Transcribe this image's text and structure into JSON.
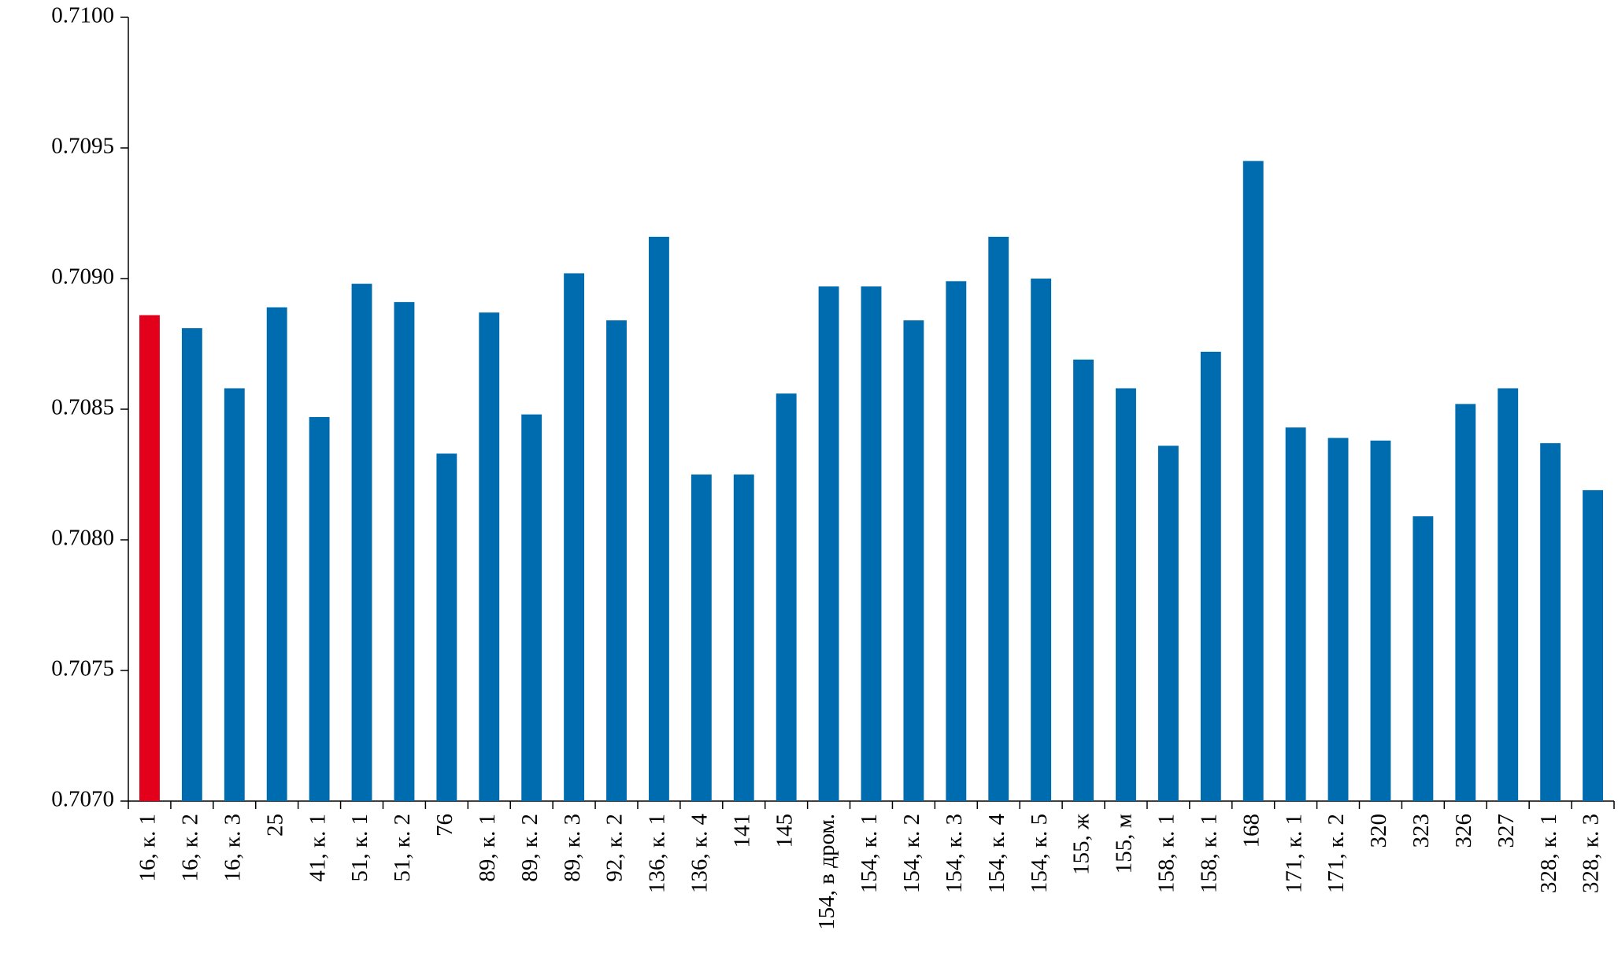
{
  "chart_data": {
    "type": "bar",
    "categories": [
      "16, к. 1",
      "16, к. 2",
      "16, к. 3",
      "25",
      "41, к. 1",
      "51, к. 1",
      "51, к. 2",
      "76",
      "89, к. 1",
      "89, к. 2",
      "89, к. 3",
      "92, к. 2",
      "136, к. 1",
      "136, к. 4",
      "141",
      "145",
      "154, в дром.",
      "154, к. 1",
      "154, к. 2",
      "154, к. 3",
      "154, к. 4",
      "154, к. 5",
      "155, ж",
      "155, м",
      "158, к. 1",
      "158, к. 1",
      "168",
      "171, к. 1",
      "171, к. 2",
      "320",
      "323",
      "326",
      "327",
      "328, к. 1",
      "328, к. 3"
    ],
    "values": [
      0.70886,
      0.70881,
      0.70858,
      0.70889,
      0.70847,
      0.70898,
      0.70891,
      0.70833,
      0.70887,
      0.70848,
      0.70902,
      0.70884,
      0.70916,
      0.70825,
      0.70825,
      0.70856,
      0.70897,
      0.70897,
      0.70884,
      0.70899,
      0.70916,
      0.709,
      0.70869,
      0.70858,
      0.70836,
      0.70872,
      0.70945,
      0.70843,
      0.70839,
      0.70838,
      0.70809,
      0.70852,
      0.70858,
      0.70837,
      0.70819
    ],
    "colors": [
      "#e2001a",
      "#006cb0",
      "#006cb0",
      "#006cb0",
      "#006cb0",
      "#006cb0",
      "#006cb0",
      "#006cb0",
      "#006cb0",
      "#006cb0",
      "#006cb0",
      "#006cb0",
      "#006cb0",
      "#006cb0",
      "#006cb0",
      "#006cb0",
      "#006cb0",
      "#006cb0",
      "#006cb0",
      "#006cb0",
      "#006cb0",
      "#006cb0",
      "#006cb0",
      "#006cb0",
      "#006cb0",
      "#006cb0",
      "#006cb0",
      "#006cb0",
      "#006cb0",
      "#006cb0",
      "#006cb0",
      "#006cb0",
      "#006cb0",
      "#006cb0",
      "#006cb0"
    ],
    "ylim": [
      0.707,
      0.71
    ],
    "yticks": [
      {
        "value": 0.707,
        "label": "0.7070"
      },
      {
        "value": 0.7075,
        "label": "0.7075"
      },
      {
        "value": 0.708,
        "label": "0.7080"
      },
      {
        "value": 0.7085,
        "label": "0.7085"
      },
      {
        "value": 0.709,
        "label": "0.7090"
      },
      {
        "value": 0.7095,
        "label": "0.7095"
      },
      {
        "value": 0.71,
        "label": "0.7100"
      }
    ],
    "grid": false
  }
}
